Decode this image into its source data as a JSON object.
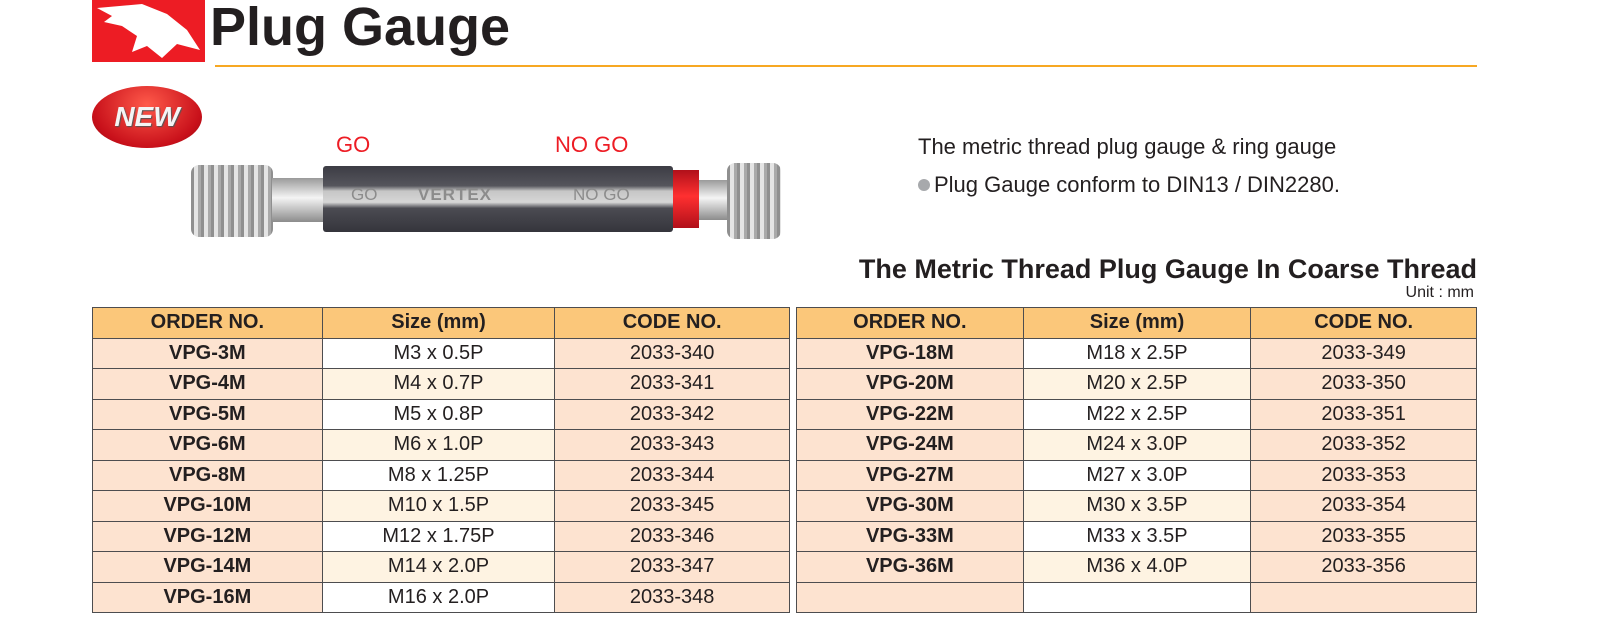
{
  "header": {
    "title": "Plug Gauge",
    "badge": "NEW"
  },
  "product": {
    "go_label": "GO",
    "nogo_label": "NO GO",
    "engraving_go": "GO",
    "engraving_brand": "VERTEX",
    "engraving_nogo": "NO GO"
  },
  "description": {
    "line1": "The metric thread plug gauge & ring gauge",
    "line2": "Plug Gauge conform to DIN13 / DIN2280."
  },
  "section": {
    "title": "The Metric Thread Plug Gauge In Coarse Thread",
    "unit": "Unit : mm"
  },
  "table": {
    "columns": [
      "ORDER NO.",
      "Size (mm)",
      "CODE NO."
    ],
    "left": [
      [
        "VPG-3M",
        "M3 x 0.5P",
        "2033-340"
      ],
      [
        "VPG-4M",
        "M4 x 0.7P",
        "2033-341"
      ],
      [
        "VPG-5M",
        "M5 x 0.8P",
        "2033-342"
      ],
      [
        "VPG-6M",
        "M6 x 1.0P",
        "2033-343"
      ],
      [
        "VPG-8M",
        "M8 x 1.25P",
        "2033-344"
      ],
      [
        "VPG-10M",
        "M10 x 1.5P",
        "2033-345"
      ],
      [
        "VPG-12M",
        "M12 x 1.75P",
        "2033-346"
      ],
      [
        "VPG-14M",
        "M14 x 2.0P",
        "2033-347"
      ],
      [
        "VPG-16M",
        "M16 x 2.0P",
        "2033-348"
      ]
    ],
    "right": [
      [
        "VPG-18M",
        "M18 x 2.5P",
        "2033-349"
      ],
      [
        "VPG-20M",
        "M20 x 2.5P",
        "2033-350"
      ],
      [
        "VPG-22M",
        "M22 x 2.5P",
        "2033-351"
      ],
      [
        "VPG-24M",
        "M24 x 3.0P",
        "2033-352"
      ],
      [
        "VPG-27M",
        "M27 x 3.0P",
        "2033-353"
      ],
      [
        "VPG-30M",
        "M30 x 3.5P",
        "2033-354"
      ],
      [
        "VPG-33M",
        "M33 x 3.5P",
        "2033-355"
      ],
      [
        "VPG-36M",
        "M36 x 4.0P",
        "2033-356"
      ],
      [
        "",
        "",
        ""
      ]
    ]
  },
  "colors": {
    "brand_red": "#ed1c24",
    "header_fill": "#fbc77a",
    "cell_fill": "#fde3d0",
    "accent_rule": "#f7a823"
  }
}
